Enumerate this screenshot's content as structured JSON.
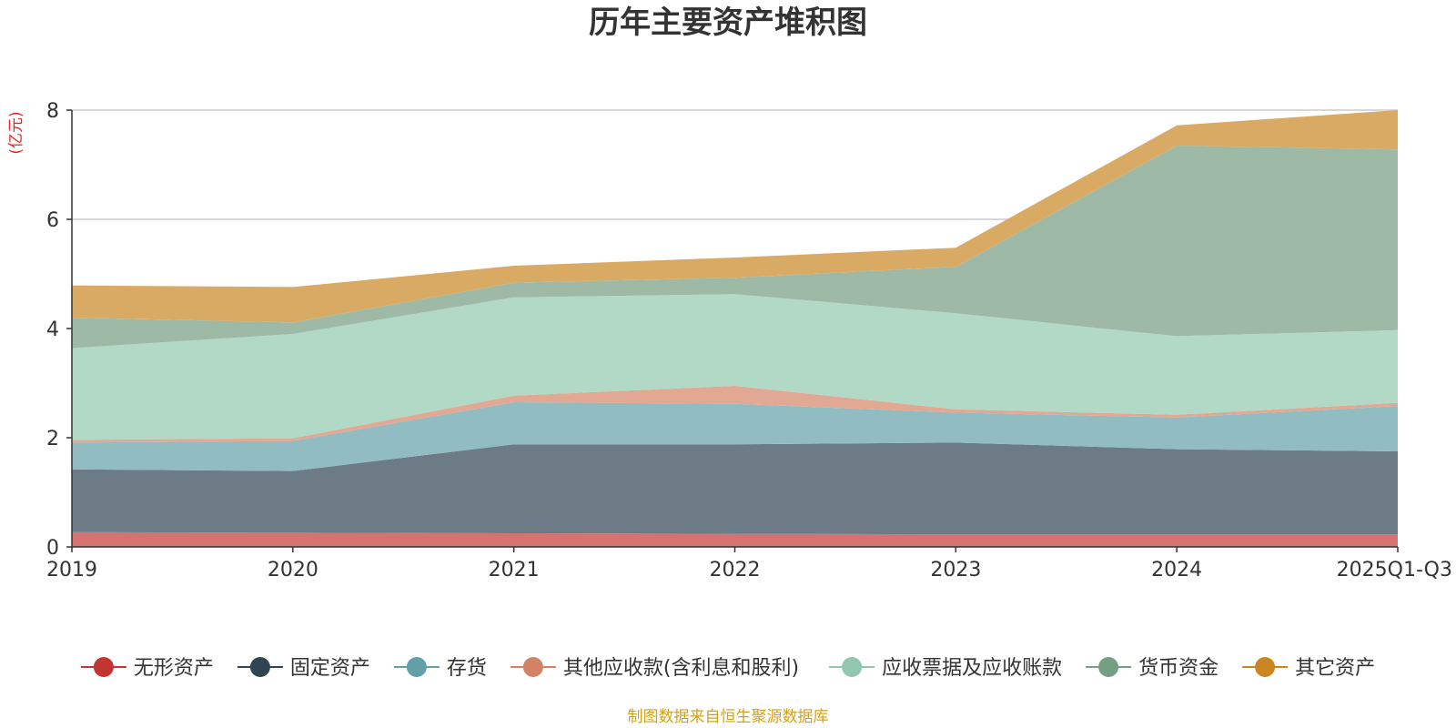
{
  "chart_data": {
    "type": "area",
    "stacked": true,
    "title": "历年主要资产堆积图",
    "ylabel": "(亿元)",
    "xlabel": "",
    "ylim": [
      0,
      8
    ],
    "yticks": [
      0,
      2,
      4,
      6,
      8
    ],
    "grid": true,
    "legend_position": "bottom",
    "categories": [
      "2019",
      "2020",
      "2021",
      "2022",
      "2023",
      "2024",
      "2025Q1-Q3"
    ],
    "series": [
      {
        "name": "无形资产",
        "color": "#c23531",
        "fill": "#d57370",
        "values": [
          0.27,
          0.26,
          0.25,
          0.24,
          0.23,
          0.23,
          0.23
        ]
      },
      {
        "name": "固定资产",
        "color": "#2f4554",
        "fill": "#6d7b87",
        "values": [
          1.15,
          1.13,
          1.63,
          1.64,
          1.68,
          1.56,
          1.52
        ]
      },
      {
        "name": "存货",
        "color": "#61a0a8",
        "fill": "#90bcc2",
        "values": [
          0.49,
          0.55,
          0.77,
          0.74,
          0.55,
          0.58,
          0.83
        ]
      },
      {
        "name": "其他应收款(含利息和股利)",
        "color": "#d48265",
        "fill": "#e1a893",
        "values": [
          0.05,
          0.05,
          0.12,
          0.33,
          0.06,
          0.05,
          0.06
        ]
      },
      {
        "name": "应收票据及应收账款",
        "color": "#91c7ae",
        "fill": "#b2d8c6",
        "values": [
          1.68,
          1.91,
          1.8,
          1.68,
          1.76,
          1.44,
          1.33
        ]
      },
      {
        "name": "货币资金",
        "color": "#749f83",
        "fill": "#9ebaa7",
        "values": [
          0.56,
          0.21,
          0.27,
          0.3,
          0.85,
          3.49,
          3.31
        ]
      },
      {
        "name": "其它资产",
        "color": "#ca8622",
        "fill": "#d9aa64",
        "values": [
          0.59,
          0.65,
          0.31,
          0.37,
          0.35,
          0.37,
          0.72
        ]
      }
    ],
    "source_note": "制图数据来自恒生聚源数据库"
  }
}
